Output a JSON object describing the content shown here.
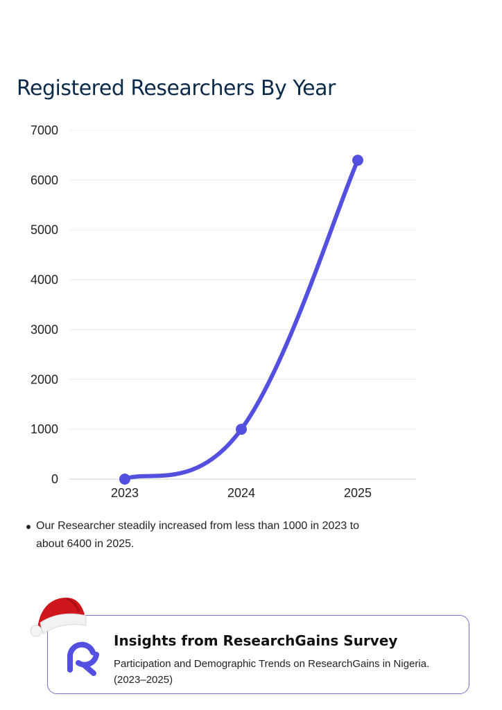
{
  "chart_data": {
    "type": "line",
    "title": "Registered Researchers By Year",
    "categories": [
      "2023",
      "2024",
      "2025"
    ],
    "series": [
      {
        "values": [
          0,
          1000,
          6400
        ],
        "color": "#5350e0"
      }
    ],
    "ylim": [
      0,
      7000
    ],
    "yticks": [
      "0",
      "1000",
      "2000",
      "3000",
      "4000",
      "5000",
      "6000",
      "7000"
    ],
    "grid": true,
    "smooth": true
  },
  "note": "Our Researcher steadily increased from less than 1000 in 2023 to about 6400 in 2025.",
  "card": {
    "title": "Insights from ResearchGains Survey",
    "subtitle": "Participation and Demographic Trends on ResearchGains in Nigeria. (2023–2025)",
    "logo_icon": "researchgains-logo-icon",
    "decoration_icon": "santa-hat-icon",
    "border_color": "#6f72c8",
    "logo_color": "#5350e0"
  }
}
